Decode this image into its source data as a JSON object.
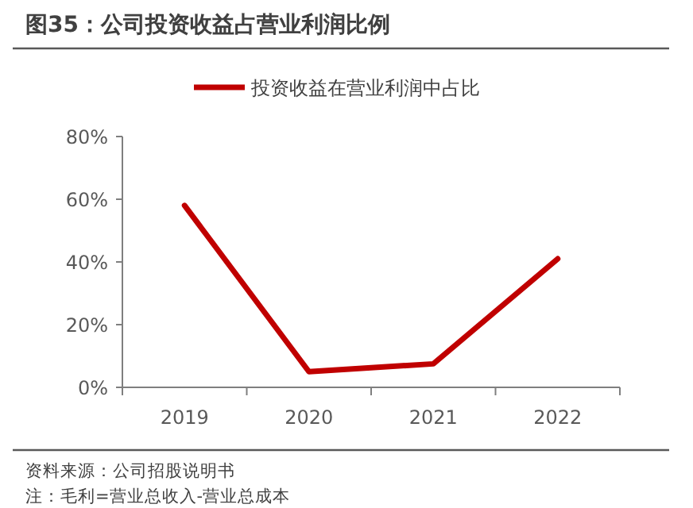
{
  "chart_data": {
    "type": "line",
    "title": "图35：公司投资收益占营业利润比例",
    "categories": [
      "2019",
      "2020",
      "2021",
      "2022"
    ],
    "series": [
      {
        "name": "投资收益在营业利润中占比",
        "color": "#c00000",
        "values": [
          58,
          5,
          7.5,
          41
        ]
      }
    ],
    "ylim": [
      0,
      80
    ],
    "yticks": [
      {
        "value": 0,
        "label": "0%"
      },
      {
        "value": 20,
        "label": "20%"
      },
      {
        "value": 40,
        "label": "40%"
      },
      {
        "value": 60,
        "label": "60%"
      },
      {
        "value": 80,
        "label": "80%"
      }
    ],
    "grid": false,
    "legend": "top",
    "marker": "none",
    "line_style": "solid",
    "annotations": [
      "资料来源：公司招股说明书",
      "注：毛利=营业总收入-营业总成本"
    ]
  }
}
